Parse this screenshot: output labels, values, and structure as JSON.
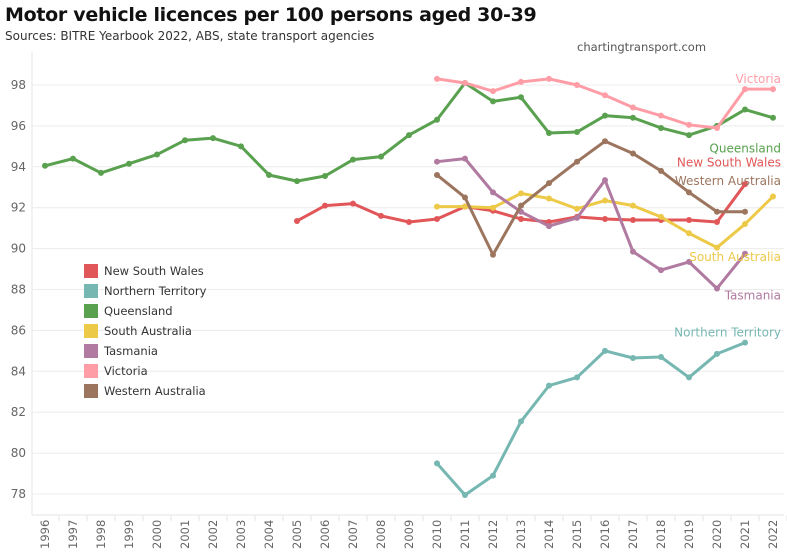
{
  "header": {
    "title": "Motor vehicle licences per 100 persons aged 30-39",
    "subtitle": "Sources: BITRE Yearbook 2022, ABS, state transport agencies",
    "credit": "chartingtransport.com"
  },
  "chart_data": {
    "type": "line",
    "title": "Motor vehicle licences per 100 persons aged 30-39",
    "subtitle": "Sources: BITRE Yearbook 2022, ABS, state transport agencies",
    "xlabel": "",
    "ylabel": "",
    "x": [
      "1996",
      "1997",
      "1998",
      "1999",
      "2000",
      "2001",
      "2002",
      "2003",
      "2004",
      "2005",
      "2006",
      "2007",
      "2008",
      "2009",
      "2010",
      "2011",
      "2012",
      "2013",
      "2014",
      "2015",
      "2016",
      "2017",
      "2018",
      "2019",
      "2020",
      "2021",
      "2022"
    ],
    "yticks": [
      78,
      80,
      82,
      84,
      86,
      88,
      90,
      92,
      94,
      96,
      98
    ],
    "ylim": [
      76.8,
      99.4
    ],
    "grid": true,
    "legend_position": "middle-left",
    "series": [
      {
        "name": "New South Wales",
        "color": "#e15759",
        "label_pos": "right",
        "values": [
          null,
          null,
          null,
          null,
          null,
          null,
          null,
          null,
          null,
          91.35,
          92.1,
          92.2,
          91.6,
          91.3,
          91.45,
          92.05,
          91.85,
          91.45,
          91.3,
          91.55,
          91.45,
          91.4,
          91.4,
          91.4,
          91.3,
          93.15,
          null
        ]
      },
      {
        "name": "Northern Territory",
        "color": "#76b7b2",
        "label_pos": "right",
        "values": [
          null,
          null,
          null,
          null,
          null,
          null,
          null,
          null,
          null,
          null,
          null,
          null,
          null,
          null,
          79.5,
          77.95,
          78.9,
          81.55,
          83.3,
          83.7,
          85.0,
          84.65,
          84.7,
          83.7,
          84.85,
          85.4,
          null
        ]
      },
      {
        "name": "Queensland",
        "color": "#59a14f",
        "label_pos": "right",
        "values": [
          94.05,
          94.4,
          93.7,
          94.15,
          94.6,
          95.3,
          95.4,
          95.0,
          93.6,
          93.3,
          93.55,
          94.35,
          94.5,
          95.55,
          96.3,
          98.1,
          97.2,
          97.4,
          95.65,
          95.7,
          96.5,
          96.4,
          95.9,
          95.55,
          96.0,
          96.8,
          96.4
        ]
      },
      {
        "name": "South Australia",
        "color": "#edc948",
        "label_pos": "right",
        "values": [
          null,
          null,
          null,
          null,
          null,
          null,
          null,
          null,
          null,
          null,
          null,
          null,
          null,
          null,
          92.05,
          92.05,
          92.0,
          92.7,
          92.45,
          91.95,
          92.35,
          92.1,
          91.55,
          90.75,
          90.05,
          91.2,
          92.55
        ]
      },
      {
        "name": "Tasmania",
        "color": "#b07aa1",
        "label_pos": "right",
        "values": [
          null,
          null,
          null,
          null,
          null,
          null,
          null,
          null,
          null,
          null,
          null,
          null,
          null,
          null,
          94.25,
          94.4,
          92.75,
          91.8,
          91.1,
          91.5,
          93.35,
          89.85,
          88.95,
          89.35,
          88.05,
          89.75,
          null
        ]
      },
      {
        "name": "Victoria",
        "color": "#ff9da7",
        "label_pos": "right",
        "values": [
          null,
          null,
          null,
          null,
          null,
          null,
          null,
          null,
          null,
          null,
          null,
          null,
          null,
          null,
          98.3,
          98.1,
          97.7,
          98.15,
          98.3,
          98.0,
          97.5,
          96.9,
          96.5,
          96.05,
          95.9,
          97.8,
          97.8
        ]
      },
      {
        "name": "Western Australia",
        "color": "#9c755f",
        "label_pos": "right",
        "values": [
          null,
          null,
          null,
          null,
          null,
          null,
          null,
          null,
          null,
          null,
          null,
          null,
          null,
          null,
          93.6,
          92.5,
          89.7,
          92.1,
          93.2,
          94.25,
          95.25,
          94.65,
          93.8,
          92.75,
          91.8,
          91.8,
          null
        ]
      }
    ]
  },
  "legend": {
    "items": [
      {
        "label": "New South Wales",
        "color": "#e15759"
      },
      {
        "label": "Northern Territory",
        "color": "#76b7b2"
      },
      {
        "label": "Queensland",
        "color": "#59a14f"
      },
      {
        "label": "South Australia",
        "color": "#edc948"
      },
      {
        "label": "Tasmania",
        "color": "#b07aa1"
      },
      {
        "label": "Victoria",
        "color": "#ff9da7"
      },
      {
        "label": "Western Australia",
        "color": "#9c755f"
      }
    ]
  },
  "end_labels": [
    {
      "series": "Victoria",
      "text": "Victoria",
      "color": "#ff9da7",
      "anchor_y": 98.3
    },
    {
      "series": "Queensland",
      "text": "Queensland",
      "color": "#59a14f",
      "anchor_y": 94.9
    },
    {
      "series": "New South Wales",
      "text": "New South Wales",
      "color": "#e15759",
      "anchor_y": 94.2
    },
    {
      "series": "Western Australia",
      "text": "Western Australia",
      "color": "#9c755f",
      "anchor_y": 93.3
    },
    {
      "series": "South Australia",
      "text": "South Australia",
      "color": "#edc948",
      "anchor_y": 89.6
    },
    {
      "series": "Tasmania",
      "text": "Tasmania",
      "color": "#b07aa1",
      "anchor_y": 87.7
    },
    {
      "series": "Northern Territory",
      "text": "Northern Territory",
      "color": "#76b7b2",
      "anchor_y": 85.9
    }
  ]
}
